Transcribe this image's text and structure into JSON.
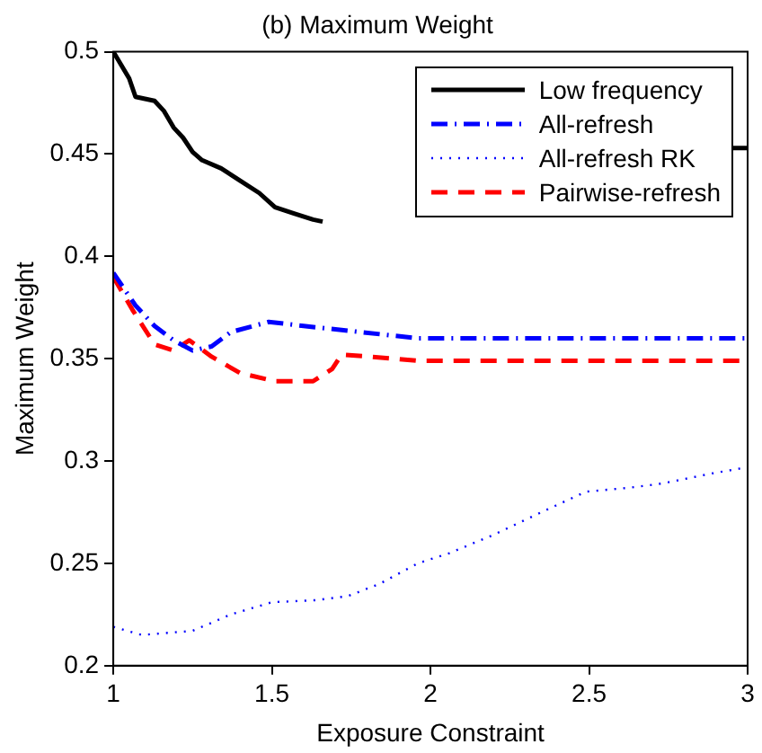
{
  "chart_data": {
    "type": "line",
    "title": "(b) Maximum Weight",
    "xlabel": "Exposure Constraint",
    "ylabel": "Maximum Weight",
    "xlim": [
      1,
      3
    ],
    "xticks": [
      1,
      1.5,
      2,
      2.5,
      3
    ],
    "ylim": [
      0.2,
      0.5
    ],
    "yticks": [
      0.2,
      0.25,
      0.3,
      0.35,
      0.4,
      0.45,
      0.5
    ],
    "grid": false,
    "legend": "top right",
    "marker": "none",
    "series": [
      {
        "name": "Low frequency",
        "color": "#000000",
        "line_style": "solid",
        "x": [
          1,
          1.05,
          1.07,
          1.13,
          1.16,
          1.19,
          1.22,
          1.25,
          1.28,
          1.34,
          1.4,
          1.46,
          1.51,
          1.57,
          1.63,
          1.66,
          1.7,
          2.9,
          2.95,
          3
        ],
        "values": [
          0.5,
          0.487,
          0.478,
          0.476,
          0.471,
          0.463,
          0.458,
          0.451,
          0.447,
          0.443,
          0.437,
          0.431,
          0.424,
          0.421,
          0.418,
          0.417,
          null,
          null,
          0.453,
          0.453
        ]
      },
      {
        "name": "All-refresh",
        "color": "#0000ff",
        "line_style": "dashdot",
        "x": [
          1,
          1.07,
          1.13,
          1.19,
          1.25,
          1.31,
          1.37,
          1.49,
          1.6,
          1.72,
          1.96,
          2.5,
          3
        ],
        "values": [
          0.392,
          0.376,
          0.366,
          0.359,
          0.354,
          0.356,
          0.363,
          0.368,
          0.366,
          0.364,
          0.36,
          0.36,
          0.36
        ]
      },
      {
        "name": "All-refresh RK",
        "color": "#0000ff",
        "line_style": "dotted",
        "x": [
          1,
          1.09,
          1.25,
          1.37,
          1.5,
          1.64,
          1.74,
          1.84,
          1.96,
          2.06,
          2.2,
          2.35,
          2.49,
          2.63,
          2.73,
          2.89,
          3
        ],
        "values": [
          0.219,
          0.215,
          0.217,
          0.225,
          0.231,
          0.232,
          0.234,
          0.24,
          0.25,
          0.255,
          0.264,
          0.275,
          0.285,
          0.287,
          0.289,
          0.294,
          0.297
        ]
      },
      {
        "name": "Pairwise-refresh",
        "color": "#ff0000",
        "line_style": "dashed",
        "x": [
          1,
          1.06,
          1.13,
          1.19,
          1.24,
          1.31,
          1.4,
          1.51,
          1.63,
          1.69,
          1.72,
          1.81,
          1.96,
          2.5,
          3
        ],
        "values": [
          0.39,
          0.374,
          0.357,
          0.354,
          0.359,
          0.351,
          0.343,
          0.339,
          0.339,
          0.345,
          0.352,
          0.351,
          0.349,
          0.349,
          0.349
        ]
      }
    ]
  }
}
